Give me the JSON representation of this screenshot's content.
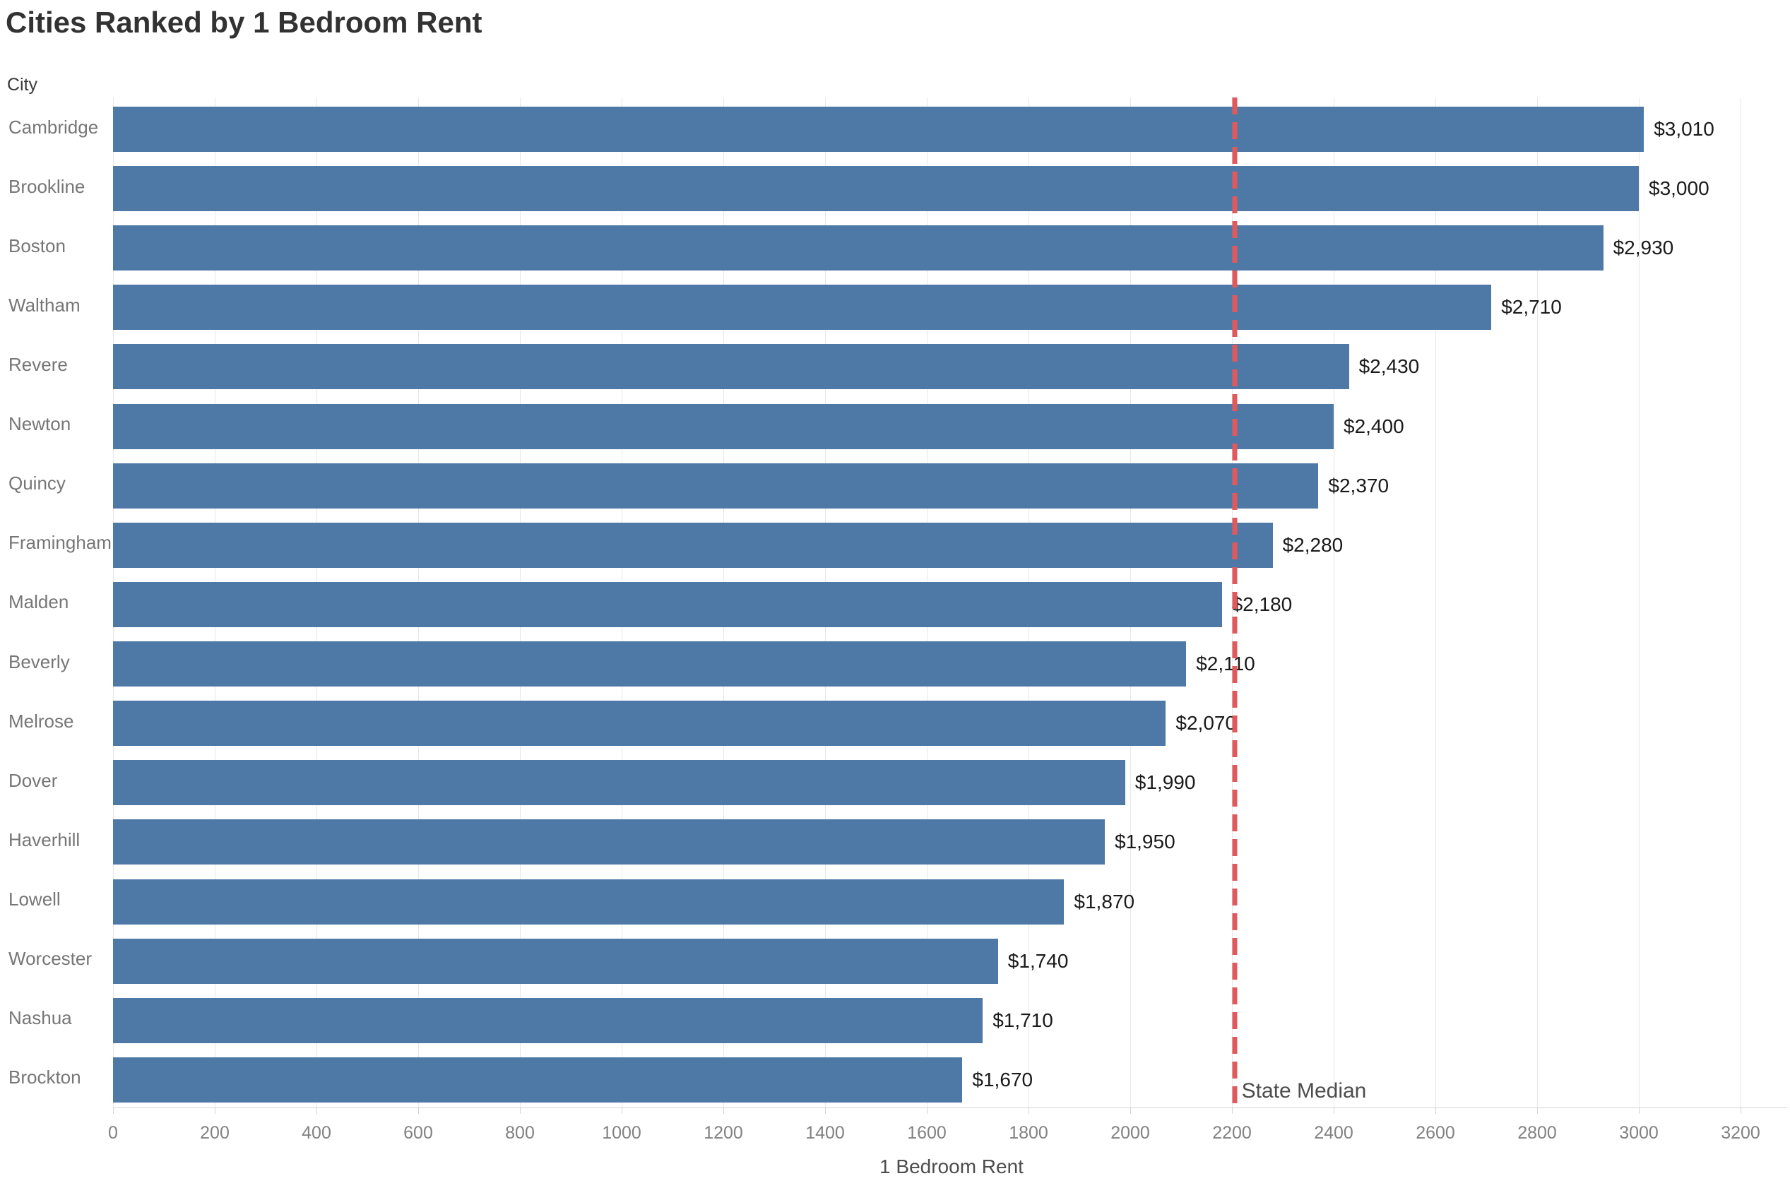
{
  "page": {
    "title": "Cities Ranked by 1 Bedroom Rent"
  },
  "chart_data": {
    "type": "bar",
    "orientation": "horizontal",
    "title": "Cities Ranked by 1 Bedroom Rent",
    "xlabel": "1 Bedroom Rent",
    "ylabel": "City",
    "xlim": [
      0,
      3200
    ],
    "x_ticks": [
      0,
      200,
      400,
      600,
      800,
      1000,
      1200,
      1400,
      1600,
      1800,
      2000,
      2200,
      2400,
      2600,
      2800,
      3000,
      3200
    ],
    "grid": "vertical-light",
    "legend": "none",
    "categories": [
      "Cambridge",
      "Brookline",
      "Boston",
      "Waltham",
      "Revere",
      "Newton",
      "Quincy",
      "Framingham",
      "Malden",
      "Beverly",
      "Melrose",
      "Dover",
      "Haverhill",
      "Lowell",
      "Worcester",
      "Nashua",
      "Brockton"
    ],
    "values": [
      3010,
      3000,
      2930,
      2710,
      2430,
      2400,
      2370,
      2280,
      2180,
      2110,
      2070,
      1990,
      1950,
      1870,
      1740,
      1710,
      1670
    ],
    "value_labels": [
      "$3,010",
      "$3,000",
      "$2,930",
      "$2,710",
      "$2,430",
      "$2,400",
      "$2,370",
      "$2,280",
      "$2,180",
      "$2,110",
      "$2,070",
      "$1,990",
      "$1,950",
      "$1,870",
      "$1,740",
      "$1,710",
      "$1,670"
    ],
    "reference_line": {
      "label": "State Median",
      "value": 2205,
      "style": "dashed"
    }
  },
  "colors": {
    "bar": "#4e79a7",
    "reference_line": "#e0595c",
    "value_label": "#1a1a1a",
    "city_label": "#767676",
    "tick_label": "#828282",
    "axis_title": "#4d4d4d",
    "title": "#323232",
    "gridline": "#e7e7e7"
  }
}
